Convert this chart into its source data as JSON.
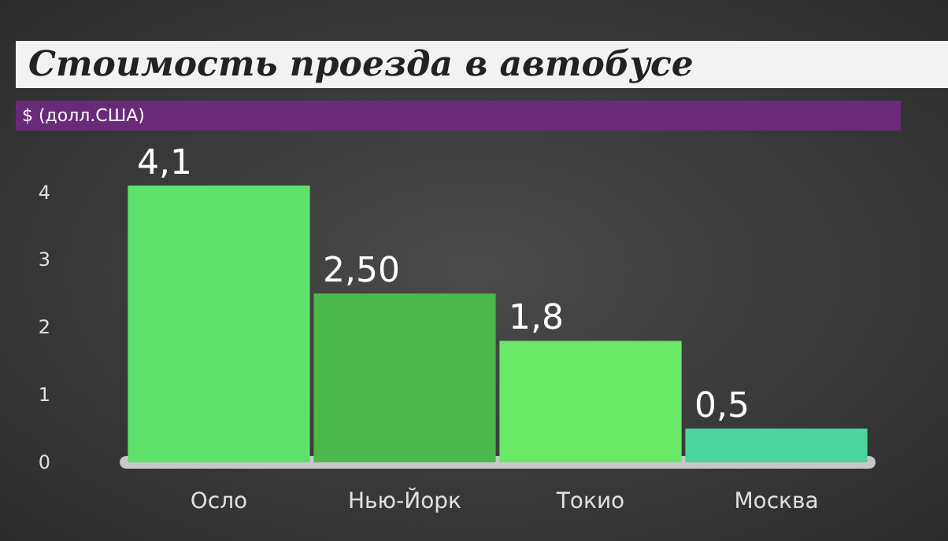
{
  "chart_data": {
    "type": "bar",
    "title": "Стоимость проезда в автобусе",
    "ylabel": "$ (долл.США)",
    "categories": [
      "Осло",
      "Нью-Йорк",
      "Токио",
      "Москва"
    ],
    "values": [
      4.1,
      2.5,
      1.8,
      0.5
    ],
    "colors": [
      "#5fe26c",
      "#4cb84e",
      "#6ae868",
      "#4dd39e"
    ],
    "value_labels": [
      "4,1",
      "2,50",
      "1,8",
      "0,5"
    ],
    "ylim": [
      0,
      4.1
    ],
    "yticks": [
      0,
      1,
      2,
      3,
      4
    ],
    "grid": false
  }
}
